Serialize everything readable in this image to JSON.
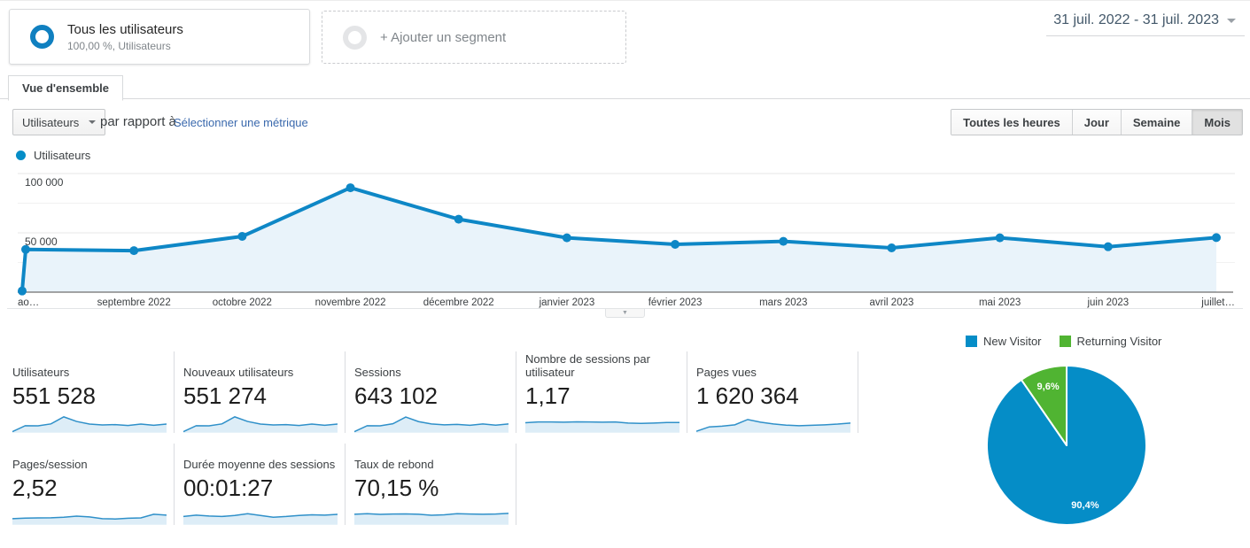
{
  "header": {
    "segment_all_users": {
      "title": "Tous les utilisateurs",
      "subtitle": "100,00 %, Utilisateurs"
    },
    "add_segment_label": "+ Ajouter un segment",
    "date_range": "31 juil. 2022 - 31 juil. 2023"
  },
  "tabs": {
    "overview": "Vue d'ensemble"
  },
  "toolbar": {
    "metric_select": "Utilisateurs",
    "compare_label": "par rapport à",
    "select_metric_link": "Sélectionner une métrique",
    "granularity": [
      {
        "label": "Toutes les heures",
        "active": false
      },
      {
        "label": "Jour",
        "active": false
      },
      {
        "label": "Semaine",
        "active": false
      },
      {
        "label": "Mois",
        "active": true
      }
    ]
  },
  "chart_legend": {
    "label": "Utilisateurs",
    "color": "#058dc7"
  },
  "misc": {
    "collapse_arrow": "▼"
  },
  "chart_data": [
    {
      "id": "users-over-time",
      "type": "area",
      "title": "Utilisateurs",
      "categories": [
        "31 juil. 2022",
        "août 2022",
        "septembre 2022",
        "octobre 2022",
        "novembre 2022",
        "décembre 2022",
        "janvier 2023",
        "février 2023",
        "mars 2023",
        "avril 2023",
        "mai 2023",
        "juin 2023",
        "juillet 2023"
      ],
      "values": [
        1000,
        36000,
        35000,
        47000,
        88000,
        61500,
        45800,
        40300,
        42800,
        37300,
        45800,
        38300,
        46000
      ],
      "x_tick_labels": [
        "ao…",
        "septembre 2022",
        "octobre 2022",
        "novembre 2022",
        "décembre 2022",
        "janvier 2023",
        "février 2023",
        "mars 2023",
        "avril 2023",
        "mai 2023",
        "juin 2023",
        "juillet…"
      ],
      "y_ticks": [
        {
          "value": 50000,
          "label": "50 000"
        },
        {
          "value": 100000,
          "label": "100 000"
        }
      ],
      "y_minor_ticks": [
        25000,
        75000
      ],
      "ylim": [
        0,
        100000
      ],
      "grid": "horizontal",
      "line_color": "#0e87c6",
      "fill_color": "#e9f3fa"
    },
    {
      "id": "visitor-type",
      "type": "pie",
      "legend_position": "top",
      "slices": [
        {
          "label": "New Visitor",
          "value": 90.4,
          "display": "90,4%",
          "color": "#058dc7"
        },
        {
          "label": "Returning Visitor",
          "value": 9.6,
          "display": "9,6%",
          "color": "#50b432"
        }
      ]
    }
  ],
  "metrics": {
    "row1": [
      {
        "label": "Utilisateurs",
        "value": "551 528",
        "spark": [
          1,
          35,
          34,
          45,
          85,
          59,
          44,
          39,
          41,
          36,
          44,
          37,
          44
        ]
      },
      {
        "label": "Nouveaux utilisateurs",
        "value": "551 274",
        "spark": [
          1,
          35,
          34,
          45,
          85,
          59,
          44,
          39,
          41,
          36,
          44,
          37,
          44
        ]
      },
      {
        "label": "Sessions",
        "value": "643 102",
        "spark": [
          1,
          35,
          34,
          46,
          84,
          58,
          45,
          40,
          42,
          37,
          45,
          38,
          45
        ]
      },
      {
        "label": "Nombre de sessions par utilisateur",
        "value": "1,17",
        "spark": [
          52,
          56,
          56,
          55,
          57,
          56,
          55,
          56,
          50,
          48,
          50,
          53,
          53
        ]
      },
      {
        "label": "Pages vues",
        "value": "1 620 364",
        "spark": [
          3,
          28,
          32,
          40,
          70,
          55,
          45,
          38,
          35,
          37,
          40,
          44,
          50
        ]
      }
    ],
    "row2": [
      {
        "label": "Pages/session",
        "value": "2,52",
        "spark": [
          30,
          33,
          34,
          35,
          38,
          44,
          40,
          30,
          28,
          32,
          34,
          55,
          50
        ]
      },
      {
        "label": "Durée moyenne des sessions",
        "value": "00:01:27",
        "spark": [
          42,
          50,
          45,
          42,
          48,
          58,
          48,
          38,
          42,
          48,
          52,
          50,
          54
        ]
      },
      {
        "label": "Taux de rebond",
        "value": "70,15 %",
        "spark": [
          55,
          58,
          54,
          56,
          57,
          55,
          49,
          52,
          58,
          56,
          55,
          56,
          60
        ]
      }
    ]
  }
}
